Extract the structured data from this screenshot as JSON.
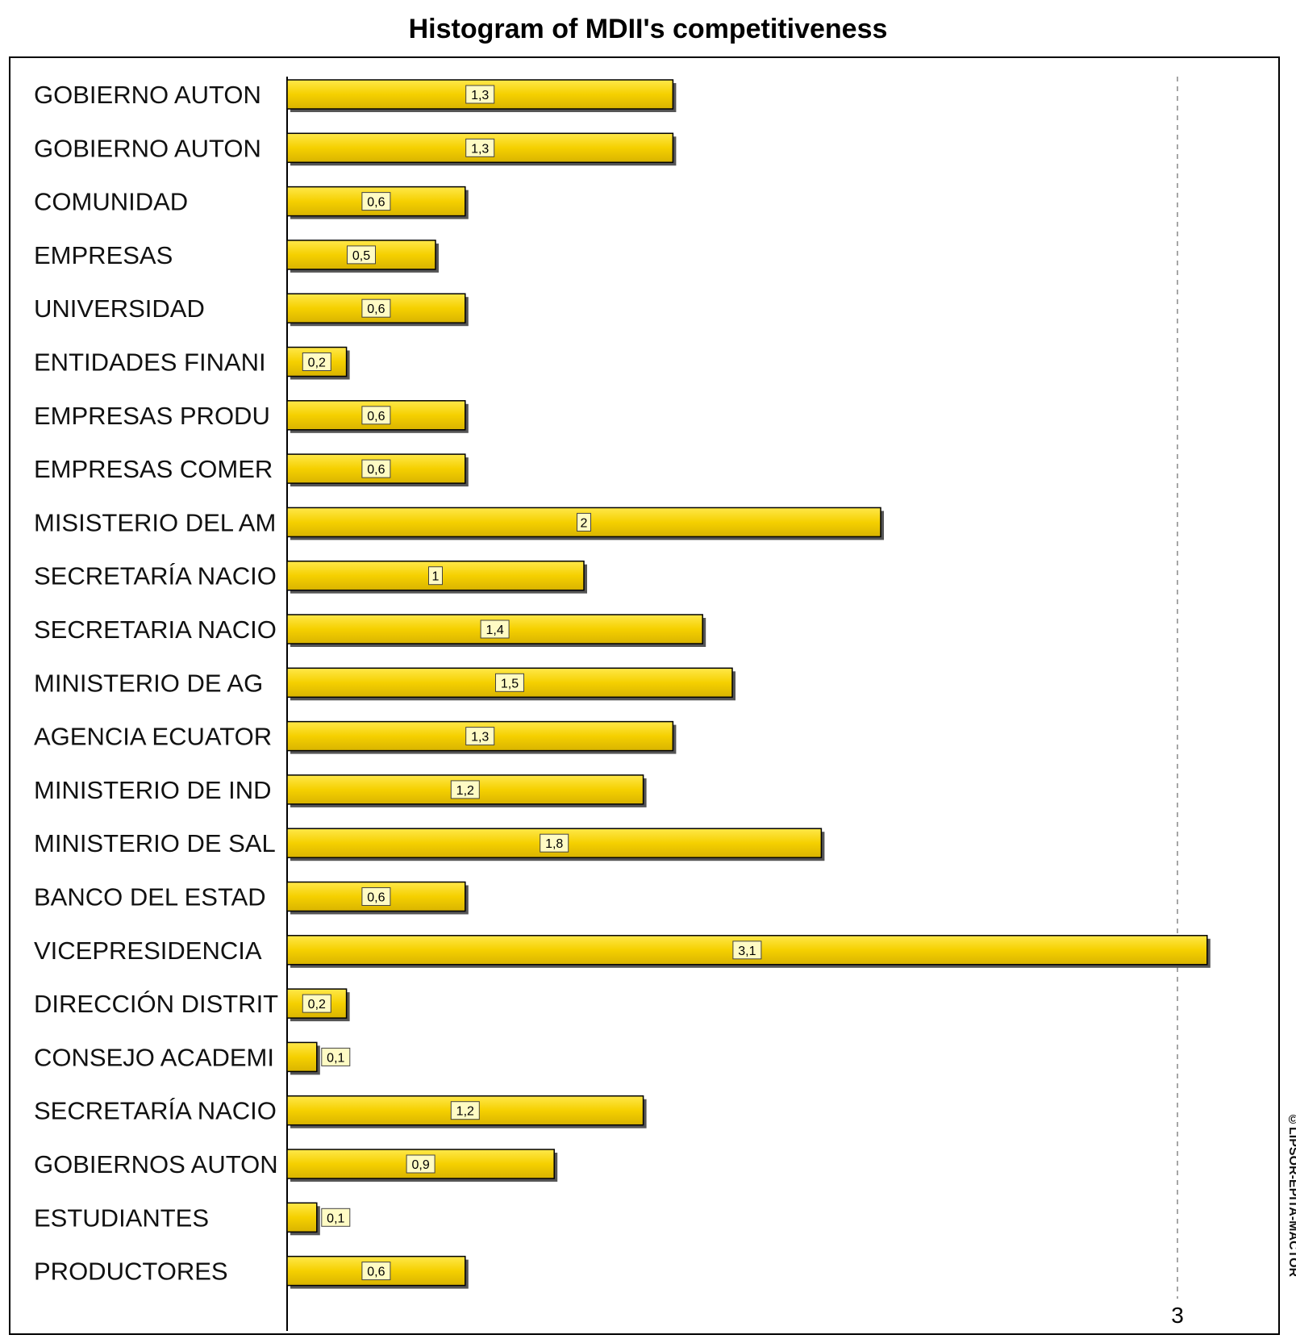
{
  "watermark": "©LIPSOR-EPITA-MACTOR",
  "chart_data": {
    "type": "bar",
    "orientation": "horizontal",
    "title": "Histogram of MDII's competitiveness",
    "categories": [
      "GOBIERNO AUTON",
      "GOBIERNO AUTON",
      "COMUNIDAD",
      "EMPRESAS",
      "UNIVERSIDAD",
      "ENTIDADES FINANI",
      "EMPRESAS PRODU",
      "EMPRESAS COMER",
      "MISISTERIO  DEL AM",
      "SECRETARÍA NACIO",
      "SECRETARIA NACIO",
      "MINISTERIO  DE AG",
      "AGENCIA ECUATOR",
      "MINISTERIO  DE IND",
      "MINISTERIO  DE SAL",
      "BANCO  DEL ESTAD",
      "VICEPRESIDENCIA",
      "DIRECCIÓN DISTRIT",
      "CONSEJO ACADEMI",
      "SECRETARÍA NACIO",
      "GOBIERNOS AUTON",
      "ESTUDIANTES",
      "PRODUCTORES"
    ],
    "values": [
      1.3,
      1.3,
      0.6,
      0.5,
      0.6,
      0.2,
      0.6,
      0.6,
      2,
      1,
      1.4,
      1.5,
      1.3,
      1.2,
      1.8,
      0.6,
      3.1,
      0.2,
      0.1,
      1.2,
      0.9,
      0.1,
      0.6
    ],
    "value_labels": [
      "1,3",
      "1,3",
      "0,6",
      "0,5",
      "0,6",
      "0,2",
      "0,6",
      "0,6",
      "2",
      "1",
      "1,4",
      "1,5",
      "1,3",
      "1,2",
      "1,8",
      "0,6",
      "3,1",
      "0,2",
      "0,1",
      "1,2",
      "0,9",
      "0,1",
      "0,6"
    ],
    "xlim": [
      0,
      3.2
    ],
    "xticks": [
      {
        "value": 3,
        "label": "3"
      }
    ],
    "grid": "vertical dashed at x ticks",
    "legend": "none",
    "colors": {
      "bar": "#f5d000",
      "bar_edge": "#000000",
      "shadow": "#555555",
      "value_box": "#fffbc4"
    }
  }
}
